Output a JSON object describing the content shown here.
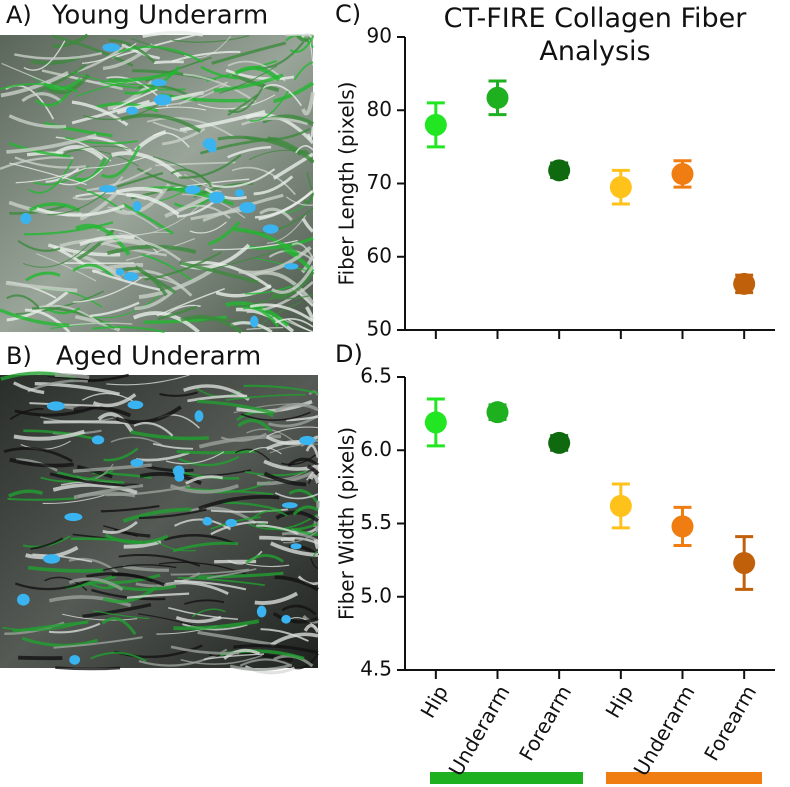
{
  "panels": [
    {
      "label": "A)",
      "title": "Young Underarm"
    },
    {
      "label": "B)",
      "title": "Aged Underarm"
    }
  ],
  "chart_data": [
    {
      "type": "dot",
      "panel_label": "C)",
      "title": "CT-FIRE Collagen Fiber Analysis",
      "ylabel": "Fiber Length (pixels)",
      "categories": [
        "Hip",
        "Underarm",
        "Forearm",
        "Hip",
        "Underarm",
        "Forearm"
      ],
      "values": [
        78,
        81.7,
        71.8,
        69.5,
        71.3,
        56.3
      ],
      "errors": [
        3,
        2.3,
        1,
        2.3,
        1.8,
        1.2
      ],
      "colors": [
        "#22e622",
        "#1fb01f",
        "#0f6a0f",
        "#ffc21a",
        "#f07d12",
        "#c0600a"
      ],
      "ylim": [
        50,
        90
      ],
      "yticks": [
        50,
        60,
        70,
        80,
        90
      ]
    },
    {
      "type": "dot",
      "panel_label": "D)",
      "ylabel": "Fiber Width (pixels)",
      "categories": [
        "Hip",
        "Underarm",
        "Forearm",
        "Hip",
        "Underarm",
        "Forearm"
      ],
      "values": [
        6.19,
        6.26,
        6.05,
        5.62,
        5.48,
        5.23
      ],
      "errors": [
        0.16,
        0.05,
        0.05,
        0.15,
        0.13,
        0.18
      ],
      "colors": [
        "#22e622",
        "#1fb01f",
        "#0f6a0f",
        "#ffc21a",
        "#f07d12",
        "#c0600a"
      ],
      "ylim": [
        4.5,
        6.5
      ],
      "yticks": [
        4.5,
        {
          "value": 5,
          "label": "5.0"
        },
        5.5,
        {
          "value": 6,
          "label": "6.0"
        },
        6.5
      ]
    }
  ]
}
